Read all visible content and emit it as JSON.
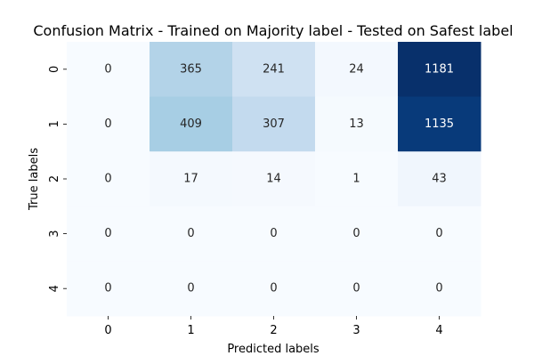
{
  "chart_data": {
    "type": "heatmap",
    "title": "Confusion Matrix - Trained on Majority label - Tested on Safest label",
    "xlabel": "Predicted labels",
    "ylabel": "True labels",
    "x_categories": [
      "0",
      "1",
      "2",
      "3",
      "4"
    ],
    "y_categories": [
      "0",
      "1",
      "2",
      "3",
      "4"
    ],
    "values": [
      [
        0,
        365,
        241,
        24,
        1181
      ],
      [
        0,
        409,
        307,
        13,
        1135
      ],
      [
        0,
        17,
        14,
        1,
        43
      ],
      [
        0,
        0,
        0,
        0,
        0
      ],
      [
        0,
        0,
        0,
        0,
        0
      ]
    ],
    "value_range": [
      0,
      1181
    ],
    "colormap": "Blues",
    "colorbar": false,
    "grid": false
  }
}
